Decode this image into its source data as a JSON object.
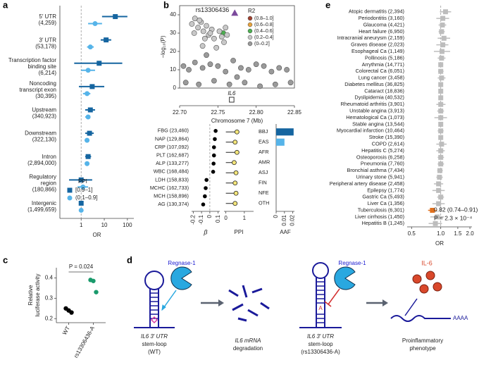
{
  "panel_labels": [
    "a",
    "b",
    "c",
    "d",
    "e"
  ],
  "chart_data": [
    {
      "type": "forest",
      "x_label": "OR",
      "log_x": true,
      "xlim": [
        0.12,
        190
      ],
      "xticks": [
        1,
        10,
        100
      ],
      "reference_line": 1,
      "categories": [
        [
          "5′ UTR",
          "(4,259)"
        ],
        [
          "3′ UTR",
          "(53,178)"
        ],
        [
          "Transcription factor",
          "binding site",
          "(6,214)"
        ],
        [
          "Noncoding",
          "transcript exon",
          "(30,395)"
        ],
        [
          "Upstream",
          "(340,923)"
        ],
        [
          "Downstream",
          "(322,130)"
        ],
        [
          "Intron",
          "(2,894,000)"
        ],
        [
          "Regulatory",
          "region",
          "(180,866)"
        ],
        [
          "Intergenic",
          "(1,499,659)"
        ]
      ],
      "legend_title": "PPI",
      "series": [
        {
          "name": "[0.9–1]",
          "color": "#1565a0",
          "marker": "square",
          "values": [
            30,
            12,
            6,
            3,
            2.5,
            2.3,
            2,
            1,
            1
          ],
          "ci_low": [
            8,
            7,
            0.5,
            0.8,
            1.5,
            1.5,
            1.5,
            0.3,
            0.9
          ],
          "ci_high": [
            100,
            20,
            60,
            10,
            4,
            3.5,
            2.7,
            3,
            1.1
          ]
        },
        {
          "name": "(0.1–0.9]",
          "color": "#56b4e9",
          "marker": "circle",
          "values": [
            4,
            2.5,
            2,
            1.8,
            2,
            1.8,
            1.8,
            1.2,
            1
          ],
          "ci_low": [
            2,
            1.8,
            1,
            1.2,
            1.5,
            1.4,
            1.5,
            0.7,
            0.95
          ],
          "ci_high": [
            8,
            3.5,
            4,
            2.5,
            2.5,
            2.2,
            2.1,
            2,
            1.05
          ]
        }
      ]
    },
    {
      "type": "scatter",
      "x_label": "Chromosome 7 (Mb)",
      "y_label": "−log₁₀(P)",
      "xlim": [
        22.7,
        22.85
      ],
      "xticks": [
        {
          "value": 22.7,
          "label": "22.70"
        },
        22.75,
        {
          "value": 22.8,
          "label": "22.80"
        },
        22.85
      ],
      "ylim": [
        0,
        45
      ],
      "yticks": [
        0,
        10,
        20,
        30,
        40
      ],
      "legend_title": "R2",
      "series": [
        {
          "name": "(0.8–1.0]",
          "color": "#a0402f",
          "x": [],
          "y": []
        },
        {
          "name": "(0.6–0.8]",
          "color": "#e8a33d",
          "x": [],
          "y": []
        },
        {
          "name": "(0.4–0.6]",
          "color": "#4caf50",
          "x": [
            22.757
          ],
          "y": [
            30
          ]
        },
        {
          "name": "(0.2–0.4]",
          "color": "#c8c8c8",
          "x": [
            22.716,
            22.72,
            22.724,
            22.728,
            22.731,
            22.735,
            22.738,
            22.742,
            22.745,
            22.719,
            22.726,
            22.733,
            22.74,
            22.752,
            22.755,
            22.76,
            22.758,
            22.762,
            22.748,
            22.73
          ],
          "y": [
            35,
            38,
            33,
            36,
            31,
            34,
            29,
            32,
            27,
            30,
            37,
            27,
            30,
            31,
            28,
            33,
            25,
            29,
            22,
            23
          ]
        },
        {
          "name": "(0–0.2]",
          "color": "#9a9a9a",
          "x": [
            22.705,
            22.712,
            22.72,
            22.73,
            22.74,
            22.75,
            22.76,
            22.77,
            22.78,
            22.79,
            22.8,
            22.81,
            22.82,
            22.83,
            22.84,
            22.708,
            22.725,
            22.745,
            22.765,
            22.785,
            22.805,
            22.825,
            22.845,
            22.735,
            22.775
          ],
          "y": [
            12,
            10,
            14,
            11,
            13,
            12,
            9,
            15,
            11,
            10,
            13,
            12,
            9,
            11,
            10,
            3,
            2,
            4,
            2,
            3,
            1,
            2,
            3,
            18,
            6
          ]
        }
      ],
      "lead": {
        "label": "rs13306436",
        "x": 22.772,
        "y": 41,
        "color": "#7b4a9c"
      },
      "gene": {
        "name": "IL6",
        "start": 22.765,
        "end": 22.771
      }
    },
    {
      "type": "dot",
      "x_label": "β",
      "categories": [
        "FBG (23,460)",
        "NAP (129,864)",
        "CRP (107,092)",
        "PLT (162,687)",
        "ALP (133,277)",
        "WBC (168,484)",
        "LDH (158,833)",
        "MCHC (162,733)",
        "MCH (158,896)",
        "AG (130,374)"
      ],
      "values": [
        0.07,
        0.06,
        0.05,
        0.05,
        0.045,
        0.04,
        -0.04,
        -0.05,
        -0.06,
        -0.08
      ],
      "xlim": [
        -0.22,
        0.12
      ],
      "xticks": [
        -0.2,
        -0.1,
        0,
        0.1
      ],
      "reference_line": 0,
      "color": "#000000"
    },
    {
      "type": "lollipop",
      "x_label": "PPI",
      "categories": [
        "BBJ",
        "EAS",
        "AFR",
        "AMR",
        "ASJ",
        "FIN",
        "NFE",
        "OTH"
      ],
      "values": [
        0.6,
        0.5,
        0.6,
        0.45,
        0.55,
        0.5,
        0.55,
        0.5
      ],
      "xlim": [
        -0.1,
        1.5
      ],
      "xticks": [
        0,
        1
      ],
      "color": "#f3e57a"
    },
    {
      "type": "hbar",
      "x_label": "AAF",
      "values": [
        0.021,
        0.01,
        0,
        0,
        0,
        0,
        0,
        0
      ],
      "colors": [
        "#1565a0",
        "#56b4e9",
        "#56b4e9",
        "#56b4e9",
        "#56b4e9",
        "#56b4e9",
        "#56b4e9",
        "#56b4e9"
      ],
      "xlim": [
        0,
        0.022
      ],
      "xticks": [
        0,
        0.01,
        0.02
      ]
    },
    {
      "type": "strip",
      "y_label": [
        "Relative",
        "luciferase activity"
      ],
      "categories": [
        "WT",
        "rs13306436-A"
      ],
      "values": [
        [
          0.25,
          0.24,
          0.23
        ],
        [
          0.39,
          0.385,
          0.33
        ]
      ],
      "colors": [
        "#000000",
        "#1a9a6c"
      ],
      "ylim": [
        0.18,
        0.45
      ],
      "yticks": [
        0.2,
        0.3,
        0.4
      ],
      "annotation": "P = 0.024"
    },
    {
      "type": "forest",
      "x_label": "OR",
      "log_x": true,
      "xlim": [
        0.45,
        2.1
      ],
      "xticks": [
        0.5,
        {
          "value": 1,
          "label": "1.0"
        },
        1.5,
        {
          "value": 2,
          "label": "2.0"
        }
      ],
      "reference_line": 1,
      "categories": [
        "Atopic dermatitis (2,394)",
        "Periodontitis (3,160)",
        "Glaucoma (4,421)",
        "Heart failure (6,950)",
        "Intracranial aneurysm (2,159)",
        "Graves disease (2,023)",
        "Esophageal Ca (1,149)",
        "Pollinosis (5,186)",
        "Arrythmia (14,771)",
        "Colorectal Ca (6,051)",
        "Lung cancer (3,458)",
        "Diabetes mellitus (36,825)",
        "Cataract (18,836)",
        "Dyslipidemia (40,532)",
        "Rheumatoid arthritis (3,901)",
        "Unstable angina (3,913)",
        "Hematological Ca (1,073)",
        "Stable angina (13,544)",
        "Myocardial infarction (10,464)",
        "Stroke (15,390)",
        "COPD (2,614)",
        "Hepatitis C (5,274)",
        "Osteoporosis (6,258)",
        "Pneumonia (7,760)",
        "Bronchial asthma (7,434)",
        "Urinary stone (5,941)",
        "Peripheral artery disease (2,458)",
        "Epilepsy (1,774)",
        "Gastric Ca (5,493)",
        "Liver Ca (1,356)",
        "Tuberculosis (6,301)",
        "Liver cirrhosis (1,450)",
        "Hepatitis B (1,245)"
      ],
      "values": [
        1.12,
        1.05,
        1.04,
        1.02,
        1.08,
        1.05,
        1.03,
        1.02,
        1,
        1,
        1.02,
        1,
        1,
        1,
        1,
        1,
        1,
        1,
        1,
        1,
        1.02,
        1,
        1,
        1,
        0.98,
        0.97,
        0.95,
        0.95,
        1,
        0.95,
        0.82,
        0.92,
        0.88
      ],
      "ci_low": [
        0.98,
        0.9,
        0.95,
        0.95,
        0.93,
        0.9,
        0.85,
        0.93,
        0.95,
        0.94,
        0.93,
        0.97,
        0.96,
        0.97,
        0.9,
        0.92,
        0.86,
        0.95,
        0.93,
        0.95,
        0.9,
        0.9,
        0.93,
        0.93,
        0.92,
        0.9,
        0.85,
        0.82,
        0.92,
        0.82,
        0.74,
        0.78,
        0.75
      ],
      "ci_high": [
        1.28,
        1.22,
        1.14,
        1.1,
        1.25,
        1.2,
        1.25,
        1.12,
        1.06,
        1.07,
        1.12,
        1.03,
        1.04,
        1.03,
        1.12,
        1.08,
        1.16,
        1.05,
        1.07,
        1.05,
        1.15,
        1.1,
        1.08,
        1.08,
        1.05,
        1.05,
        1.06,
        1.1,
        1.08,
        1.1,
        0.91,
        1.08,
        1.03
      ],
      "colors": [
        "#bdbdbd",
        "#bdbdbd",
        "#bdbdbd",
        "#bdbdbd",
        "#bdbdbd",
        "#bdbdbd",
        "#bdbdbd",
        "#bdbdbd",
        "#bdbdbd",
        "#bdbdbd",
        "#bdbdbd",
        "#bdbdbd",
        "#bdbdbd",
        "#bdbdbd",
        "#bdbdbd",
        "#bdbdbd",
        "#bdbdbd",
        "#bdbdbd",
        "#bdbdbd",
        "#bdbdbd",
        "#bdbdbd",
        "#bdbdbd",
        "#bdbdbd",
        "#bdbdbd",
        "#bdbdbd",
        "#bdbdbd",
        "#bdbdbd",
        "#bdbdbd",
        "#bdbdbd",
        "#bdbdbd",
        "#e0701e",
        "#bdbdbd",
        "#bdbdbd"
      ],
      "annotations": [
        "0.82 (0.74–0.91)",
        "P = 2.3 × 10⁻⁴"
      ]
    }
  ],
  "diagram": {
    "wt_enzyme": "Regnase-1",
    "mut_enzyme": "Regnase-1",
    "cytokine": "IL-6",
    "poly_a": "AAAA",
    "mut_allele": "A",
    "wt_caption": [
      "IL6 3′ UTR",
      "stem-loop",
      "(WT)"
    ],
    "deg_caption": [
      "IL6 mRNA",
      "degradation"
    ],
    "mut_caption": [
      "IL6 3′ UTR",
      "stem-loop",
      "(rs13306436-A)"
    ],
    "pheno_caption": [
      "Proinflammatory",
      "phenotype"
    ]
  }
}
